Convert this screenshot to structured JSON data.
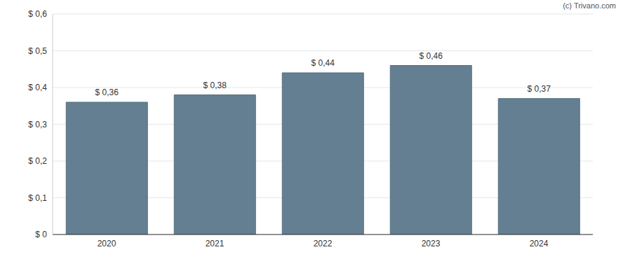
{
  "chart_data": {
    "type": "bar",
    "annotation": "(c) Trivano.com",
    "categories": [
      "2020",
      "2021",
      "2022",
      "2023",
      "2024"
    ],
    "values": [
      0.36,
      0.38,
      0.44,
      0.46,
      0.37
    ],
    "value_labels": [
      "$ 0,36",
      "$ 0,38",
      "$ 0,44",
      "$ 0,46",
      "$ 0,37"
    ],
    "data_labels": true,
    "color": "#647f91",
    "ylim": [
      0,
      0.6
    ],
    "yticks": [
      {
        "value": 0,
        "label": "$ 0"
      },
      {
        "value": 0.1,
        "label": "$ 0,1"
      },
      {
        "value": 0.2,
        "label": "$ 0,2"
      },
      {
        "value": 0.3,
        "label": "$ 0,3"
      },
      {
        "value": 0.4,
        "label": "$ 0,4"
      },
      {
        "value": 0.5,
        "label": "$ 0,5"
      },
      {
        "value": 0.6,
        "label": "$ 0,6"
      }
    ],
    "grid": true
  }
}
